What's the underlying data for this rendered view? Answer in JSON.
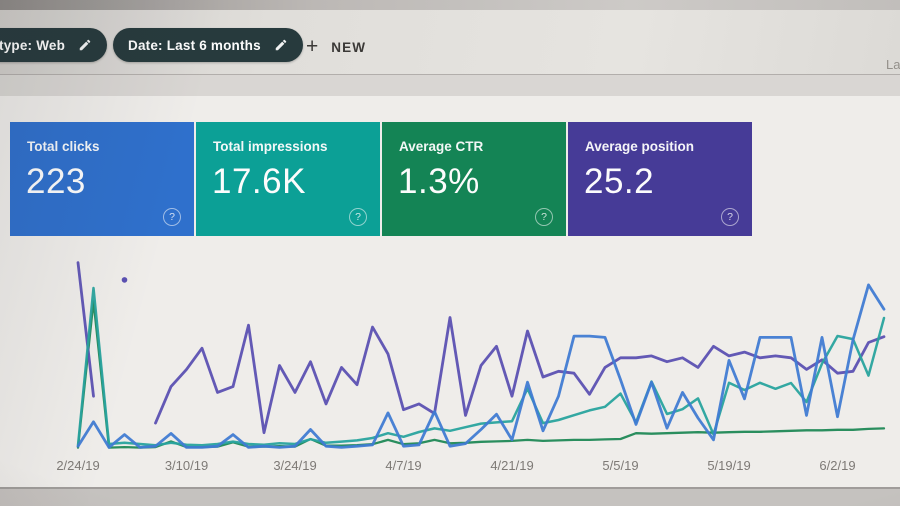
{
  "header": {
    "filter_chips": [
      {
        "label": "type: Web",
        "icon": "pencil-icon"
      },
      {
        "label": "Date: Last 6 months",
        "icon": "pencil-icon"
      }
    ],
    "new_button": {
      "plus_glyph": "+",
      "label": "NEW"
    },
    "right_partial_text": "La"
  },
  "icons": {
    "help_glyph": "?"
  },
  "cards": [
    {
      "label": "Total clicks",
      "value": "223",
      "color": "#2a70d3"
    },
    {
      "label": "Total impressions",
      "value": "17.6K",
      "color": "#03a298"
    },
    {
      "label": "Average CTR",
      "value": "1.3%",
      "color": "#0d8653"
    },
    {
      "label": "Average position",
      "value": "25.2",
      "color": "#45399c"
    }
  ],
  "chart_data": {
    "type": "line",
    "title": "",
    "xlabel": "",
    "ylabel": "",
    "grid": "off",
    "legend": "none",
    "x_tick_labels": [
      "2/24/19",
      "3/10/19",
      "3/24/19",
      "4/7/19",
      "4/21/19",
      "5/5/19",
      "5/19/19",
      "6/2/19"
    ],
    "x_tick_indices": [
      0,
      7,
      14,
      21,
      28,
      35,
      42,
      49
    ],
    "x_dates": [
      "2/24/19",
      "2/26/19",
      "2/28/19",
      "3/2/19",
      "3/4/19",
      "3/6/19",
      "3/8/19",
      "3/10/19",
      "3/12/19",
      "3/14/19",
      "3/16/19",
      "3/18/19",
      "3/20/19",
      "3/22/19",
      "3/24/19",
      "3/26/19",
      "3/28/19",
      "3/30/19",
      "4/1/19",
      "4/3/19",
      "4/5/19",
      "4/7/19",
      "4/9/19",
      "4/11/19",
      "4/13/19",
      "4/15/19",
      "4/17/19",
      "4/19/19",
      "4/21/19",
      "4/23/19",
      "4/25/19",
      "4/27/19",
      "4/29/19",
      "5/1/19",
      "5/3/19",
      "5/5/19",
      "5/7/19",
      "5/9/19",
      "5/11/19",
      "5/13/19",
      "5/15/19",
      "5/17/19",
      "5/19/19",
      "5/21/19",
      "5/23/19",
      "5/25/19",
      "5/27/19",
      "5/29/19",
      "5/31/19",
      "6/2/19",
      "6/4/19",
      "6/6/19",
      "6/8/19"
    ],
    "series": [
      {
        "id": "ctr",
        "name": "CTR",
        "unit": "%",
        "color": "#188a54",
        "width": 2.3,
        "y_range": [
          0,
          40
        ],
        "values": [
          0.5,
          31,
          0.5,
          0.6,
          0.5,
          0.6,
          1.8,
          0.6,
          0.6,
          0.7,
          1.6,
          0.7,
          0.7,
          0.8,
          0.7,
          2.3,
          0.9,
          0.9,
          1,
          1.2,
          2.1,
          1.2,
          1.4,
          2.1,
          1.4,
          1.5,
          1.7,
          1.8,
          1.9,
          2.1,
          1.9,
          2,
          2.1,
          2.1,
          2.2,
          2.3,
          3.5,
          3.4,
          3.5,
          3.6,
          3.7,
          3.6,
          3.7,
          3.8,
          3.8,
          3.9,
          4,
          4.1,
          4.1,
          4.2,
          4.2,
          4.4,
          4.5
        ]
      },
      {
        "id": "position",
        "name": "Position",
        "unit": "rank",
        "color": "#5a4fb8",
        "width": 2.8,
        "inverted": true,
        "y_range": [
          0,
          50
        ],
        "values": [
          1.2,
          36,
          null,
          5.7,
          null,
          43,
          33.5,
          29,
          23.5,
          35,
          33.5,
          17.5,
          45.5,
          28,
          35,
          27,
          38,
          28.5,
          33,
          18,
          25,
          39.5,
          38,
          40.5,
          15.5,
          41,
          28,
          23,
          36,
          19,
          31,
          29.5,
          30,
          35.5,
          28.5,
          26,
          26,
          25.5,
          27,
          26,
          28.5,
          23,
          25.5,
          24.5,
          26,
          25.5,
          26,
          29,
          26.5,
          30,
          29.5,
          22,
          20.5
        ]
      },
      {
        "id": "impressions",
        "name": "Impressions",
        "unit": "impressions",
        "color": "#22a5a0",
        "width": 2.5,
        "y_range": [
          0,
          800
        ],
        "values": [
          20,
          675,
          25,
          30,
          25,
          20,
          30,
          22,
          20,
          25,
          35,
          25,
          22,
          28,
          25,
          45,
          30,
          35,
          40,
          50,
          70,
          55,
          75,
          90,
          80,
          95,
          110,
          115,
          120,
          256,
          112,
          125,
          145,
          165,
          180,
          235,
          115,
          285,
          150,
          170,
          215,
          65,
          280,
          250,
          280,
          255,
          279,
          200,
          360,
          475,
          462,
          310,
          550
        ]
      },
      {
        "id": "clicks",
        "name": "Clicks",
        "unit": "clicks",
        "color": "#3c7bd9",
        "width": 2.8,
        "y_range": [
          0,
          15
        ],
        "values": [
          0.3,
          2.2,
          0.2,
          1.2,
          0.2,
          0.3,
          1.3,
          0.2,
          0.2,
          0.3,
          1.2,
          0.2,
          0.3,
          0.2,
          0.3,
          1.6,
          0.3,
          0.2,
          0.3,
          0.4,
          2.9,
          0.3,
          0.4,
          3,
          0.3,
          0.5,
          1.6,
          2.8,
          0.8,
          5.3,
          1.5,
          4.2,
          8.9,
          8.9,
          8.8,
          5.5,
          2,
          5.3,
          1.7,
          4.5,
          2.5,
          0.8,
          7,
          4,
          8.8,
          8.8,
          8.8,
          2.7,
          8.8,
          2.6,
          8.6,
          12.9,
          11
        ]
      }
    ]
  }
}
